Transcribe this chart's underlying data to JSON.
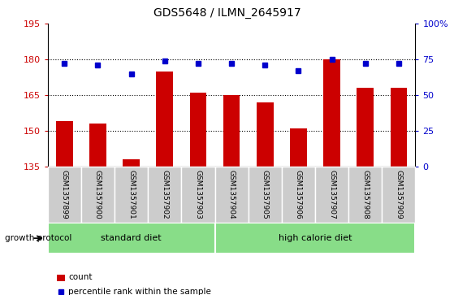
{
  "title": "GDS5648 / ILMN_2645917",
  "samples": [
    "GSM1357899",
    "GSM1357900",
    "GSM1357901",
    "GSM1357902",
    "GSM1357903",
    "GSM1357904",
    "GSM1357905",
    "GSM1357906",
    "GSM1357907",
    "GSM1357908",
    "GSM1357909"
  ],
  "counts": [
    154,
    153,
    138,
    175,
    166,
    165,
    162,
    151,
    180,
    168,
    168
  ],
  "percentiles": [
    72,
    71,
    65,
    74,
    72,
    72,
    71,
    67,
    75,
    72,
    72
  ],
  "ylim_left": [
    135,
    195
  ],
  "ylim_right": [
    0,
    100
  ],
  "yticks_left": [
    135,
    150,
    165,
    180,
    195
  ],
  "yticks_right": [
    0,
    25,
    50,
    75,
    100
  ],
  "ytick_labels_right": [
    "0",
    "25",
    "50",
    "75",
    "100%"
  ],
  "groups": [
    {
      "label": "standard diet",
      "start": 0,
      "end": 5
    },
    {
      "label": "high calorie diet",
      "start": 5,
      "end": 11
    }
  ],
  "group_protocol_label": "growth protocol",
  "bar_color": "#cc0000",
  "dot_color": "#0000cc",
  "tick_color_left": "#cc0000",
  "tick_color_right": "#0000cc",
  "xlabel_bg_color": "#cccccc",
  "group_bg_color": "#88dd88",
  "legend_count_label": "count",
  "legend_percentile_label": "percentile rank within the sample",
  "dotted_lines": [
    150,
    165,
    180
  ],
  "bar_width": 0.5,
  "dot_marker_size": 5
}
